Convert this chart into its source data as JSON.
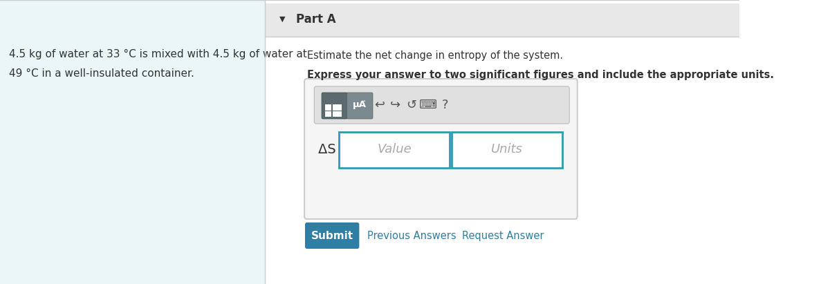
{
  "bg_color": "#ffffff",
  "left_panel_bg": "#eaf6f8",
  "left_panel_text_line1": "4.5 kg of water at 33 °C is mixed with 4.5 kg of water at",
  "left_panel_text_line2": "49 °C in a well-insulated container.",
  "part_a_bg": "#e8e8e8",
  "part_a_text": "Part A",
  "part_a_arrow": "▼",
  "instruction_text": "Estimate the net change in entropy of the system.",
  "bold_text": "Express your answer to two significant figures and include the appropriate units.",
  "input_box_border": "#2e9ab5",
  "toolbar_bg": "#e0e0e0",
  "delta_s_label": "ΔS =",
  "value_placeholder": "Value",
  "units_placeholder": "Units",
  "submit_bg": "#2e7fa3",
  "submit_text": "Submit",
  "prev_answers_text": "Previous Answers",
  "request_answer_text": "Request Answer",
  "link_color": "#2e7fa3",
  "text_color": "#333333",
  "toolbar_icon_bg": "#5a6a6e",
  "toolbar_icon_bg2": "#7a8a8e"
}
